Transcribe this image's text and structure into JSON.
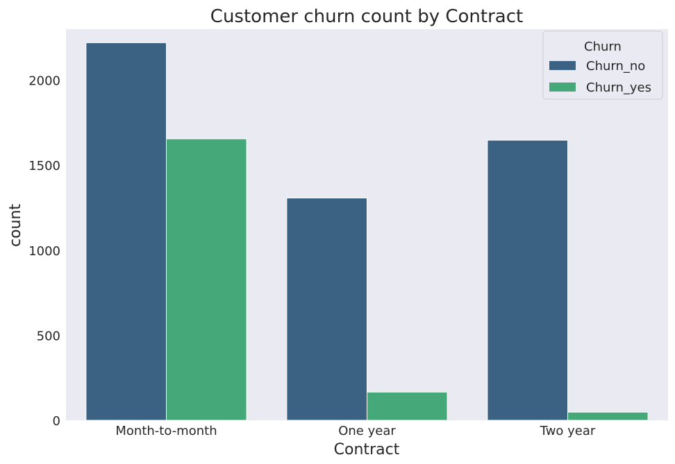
{
  "chart_data": {
    "type": "bar",
    "title": "Customer churn count by Contract",
    "xlabel": "Contract",
    "ylabel": "count",
    "categories": [
      "Month-to-month",
      "One year",
      "Two year"
    ],
    "series": [
      {
        "name": "Churn_no",
        "values": [
          2220,
          1307,
          1647
        ],
        "color": "#3b6282"
      },
      {
        "name": "Churn_yes",
        "values": [
          1655,
          166,
          48
        ],
        "color": "#45a878"
      }
    ],
    "ylim": [
      0,
      2300
    ],
    "yticks": [
      0,
      500,
      1000,
      1500,
      2000
    ],
    "grid": false,
    "legend": {
      "title": "Churn",
      "placement": "top-right"
    },
    "colors": {
      "plot_background": "#eaeaf2",
      "bar_edge": "#ffffff"
    }
  }
}
